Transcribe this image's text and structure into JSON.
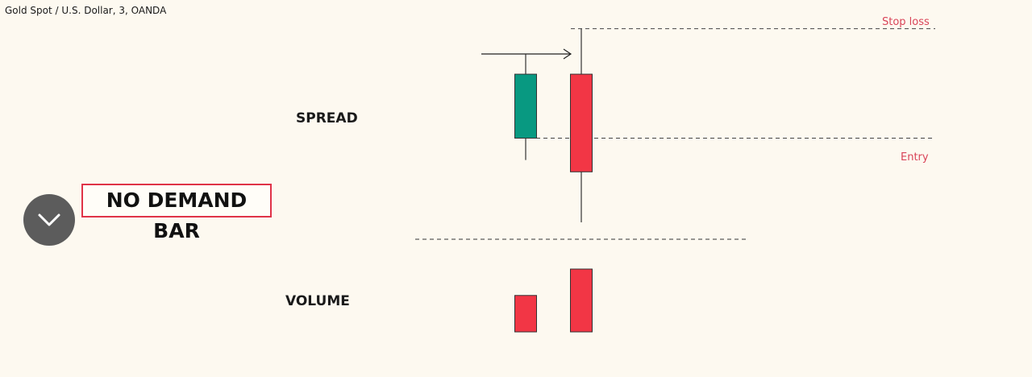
{
  "header": {
    "symbol_title": "Gold Spot / U.S. Dollar, 3, OANDA"
  },
  "labels": {
    "spread": "SPREAD",
    "volume": "VOLUME",
    "stop_loss": "Stop loss",
    "entry": "Entry",
    "callout": "NO DEMAND BAR"
  },
  "colors": {
    "bull": "#089981",
    "bear": "#f23645",
    "callout_border": "#e03348",
    "level_label": "#d94458"
  },
  "controls": {
    "collapse_icon": "chevron-down-icon"
  },
  "chart_data": {
    "type": "candlestick",
    "price_candles": [
      {
        "direction": "up",
        "open": 0.5,
        "close": 0.88,
        "high": 1.0,
        "low": 0.37
      },
      {
        "direction": "down",
        "open": 0.88,
        "close": 0.3,
        "high": 1.15,
        "low": 0.0
      }
    ],
    "volume_bars": [
      {
        "direction": "up",
        "value": 0.58
      },
      {
        "direction": "down",
        "value": 1.0
      }
    ],
    "levels": [
      {
        "name": "Stop loss",
        "price": 1.15
      },
      {
        "name": "Entry",
        "price": 0.5
      }
    ],
    "grid": false,
    "legend": "none"
  }
}
